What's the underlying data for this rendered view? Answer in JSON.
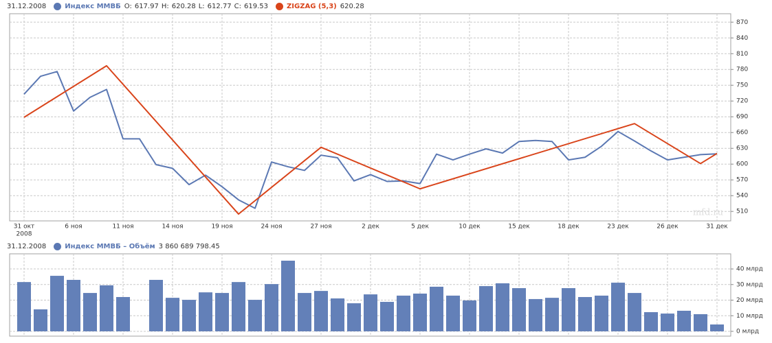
{
  "chart_data": [
    {
      "type": "line",
      "date": "31.12.2008",
      "categories": [
        "31 окт",
        null,
        null,
        "6 ноя",
        null,
        null,
        "11 ноя",
        null,
        null,
        "14 ноя",
        null,
        null,
        "19 ноя",
        null,
        null,
        "24 ноя",
        null,
        null,
        "27 ноя",
        null,
        null,
        "2 дек",
        null,
        null,
        "5 дек",
        null,
        null,
        "10 дек",
        null,
        null,
        "15 дек",
        null,
        null,
        "18 дек",
        null,
        null,
        "23 дек",
        null,
        null,
        "26 дек",
        null,
        null,
        "31 дек"
      ],
      "first_category_year": "2008",
      "watermark": "mfd.ru",
      "ylim": [
        492,
        886
      ],
      "yticks": [
        510,
        540,
        570,
        600,
        630,
        660,
        690,
        720,
        750,
        780,
        810,
        840,
        870
      ],
      "grid": true,
      "series": [
        {
          "name": "Индекс ММВБ",
          "color": "#5b78b3",
          "ohlc": [
            {
              "label": "O:",
              "value": 617.97
            },
            {
              "label": "H:",
              "value": 620.28
            },
            {
              "label": "L:",
              "value": 612.77
            },
            {
              "label": "C:",
              "value": 619.53
            }
          ],
          "values": [
            733,
            767,
            776,
            701,
            727,
            742,
            648,
            648,
            599,
            592,
            561,
            579,
            557,
            532,
            516,
            604,
            595,
            588,
            617,
            612,
            568,
            580,
            567,
            568,
            563,
            619,
            608,
            619,
            629,
            621,
            643,
            645,
            643,
            608,
            613,
            634,
            662,
            644,
            625,
            608,
            613,
            618,
            619.53
          ]
        },
        {
          "name": "ZIGZAG (5,3)",
          "color": "#d9441a",
          "x": [
            0,
            5,
            13,
            18,
            24,
            37,
            41,
            42
          ],
          "values": [
            689,
            787,
            505,
            632,
            553,
            677,
            601,
            620.28
          ]
        }
      ]
    },
    {
      "type": "bar",
      "date": "31.12.2008",
      "title": "Индекс ММВБ – Объём",
      "title_color": "#5b78b3",
      "total_label": "3 860 689 798.45",
      "color": "#6380b8",
      "values": [
        31.6,
        14.1,
        35.6,
        33,
        24.6,
        29.5,
        22,
        null,
        33,
        21.5,
        20.2,
        25,
        24.6,
        31.6,
        20.2,
        30.3,
        45.3,
        24.6,
        25.9,
        21.1,
        18,
        23.7,
        18.9,
        22.9,
        24.2,
        28.6,
        22.9,
        19.8,
        29,
        30.8,
        27.7,
        20.7,
        21.5,
        27.7,
        22,
        22.9,
        31.2,
        24.6,
        12.3,
        11.4,
        13.2,
        11,
        4.4
      ],
      "ylim": [
        0,
        49.7
      ],
      "yticks": [
        {
          "value": 0,
          "label": "0 млрд"
        },
        {
          "value": 10,
          "label": "10 млрд"
        },
        {
          "value": 20,
          "label": "20 млрд"
        },
        {
          "value": 30,
          "label": "30 млрд"
        },
        {
          "value": 40,
          "label": "40 млрд"
        }
      ],
      "grid": true
    }
  ]
}
